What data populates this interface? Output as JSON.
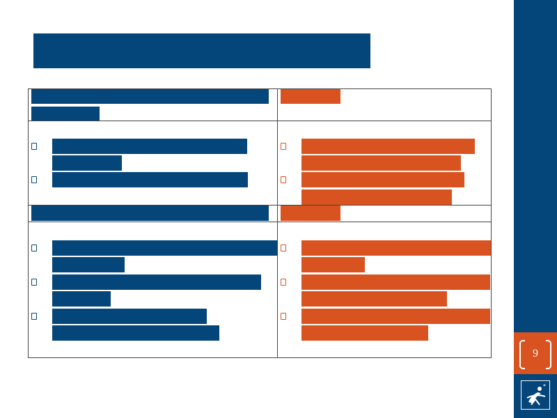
{
  "slide": {
    "page_number": "9"
  },
  "colors": {
    "primary": "#04457a",
    "accent": "#d8531f"
  },
  "icons": [
    "logo-icon",
    "bullet-icon"
  ]
}
